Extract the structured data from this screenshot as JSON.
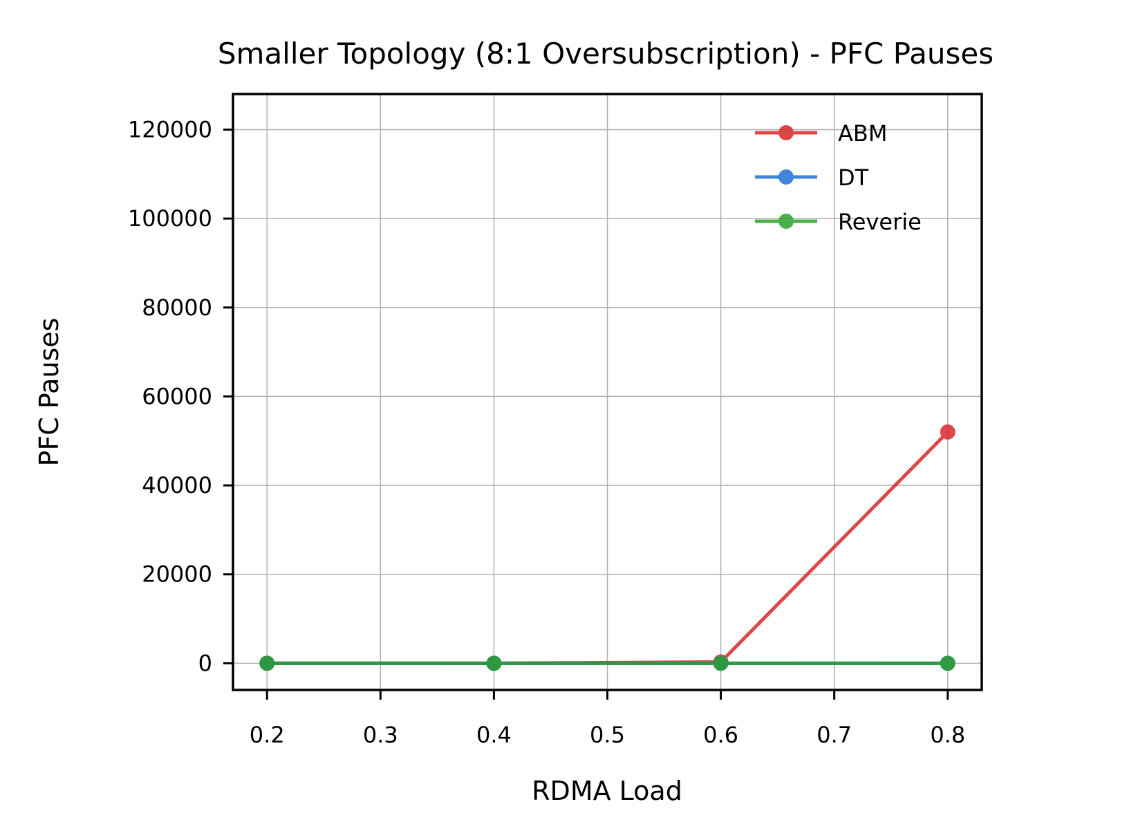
{
  "chart_data": {
    "type": "line",
    "title": "Smaller Topology (8:1 Oversubscription) - PFC Pauses",
    "xlabel": "RDMA Load",
    "ylabel": "PFC Pauses",
    "x": [
      0.2,
      0.4,
      0.6,
      0.8
    ],
    "xlim": [
      0.17,
      0.83
    ],
    "ylim": [
      -6000,
      128000
    ],
    "xticks": [
      0.2,
      0.3,
      0.4,
      0.5,
      0.6,
      0.7,
      0.8
    ],
    "xtick_labels": [
      "0.2",
      "0.3",
      "0.4",
      "0.5",
      "0.6",
      "0.7",
      "0.8"
    ],
    "yticks": [
      0,
      20000,
      40000,
      60000,
      80000,
      100000,
      120000
    ],
    "ytick_labels": [
      "0",
      "20000",
      "40000",
      "60000",
      "80000",
      "100000",
      "120000"
    ],
    "grid": true,
    "legend_position": "top-right",
    "series": [
      {
        "name": "ABM",
        "color": "#d62728",
        "values": [
          0,
          0,
          300,
          52000
        ]
      },
      {
        "name": "DT",
        "color": "#1f6fd6",
        "values": [
          0,
          0,
          0,
          0
        ]
      },
      {
        "name": "Reverie",
        "color": "#2ca02c",
        "values": [
          0,
          0,
          0,
          0
        ]
      }
    ]
  }
}
